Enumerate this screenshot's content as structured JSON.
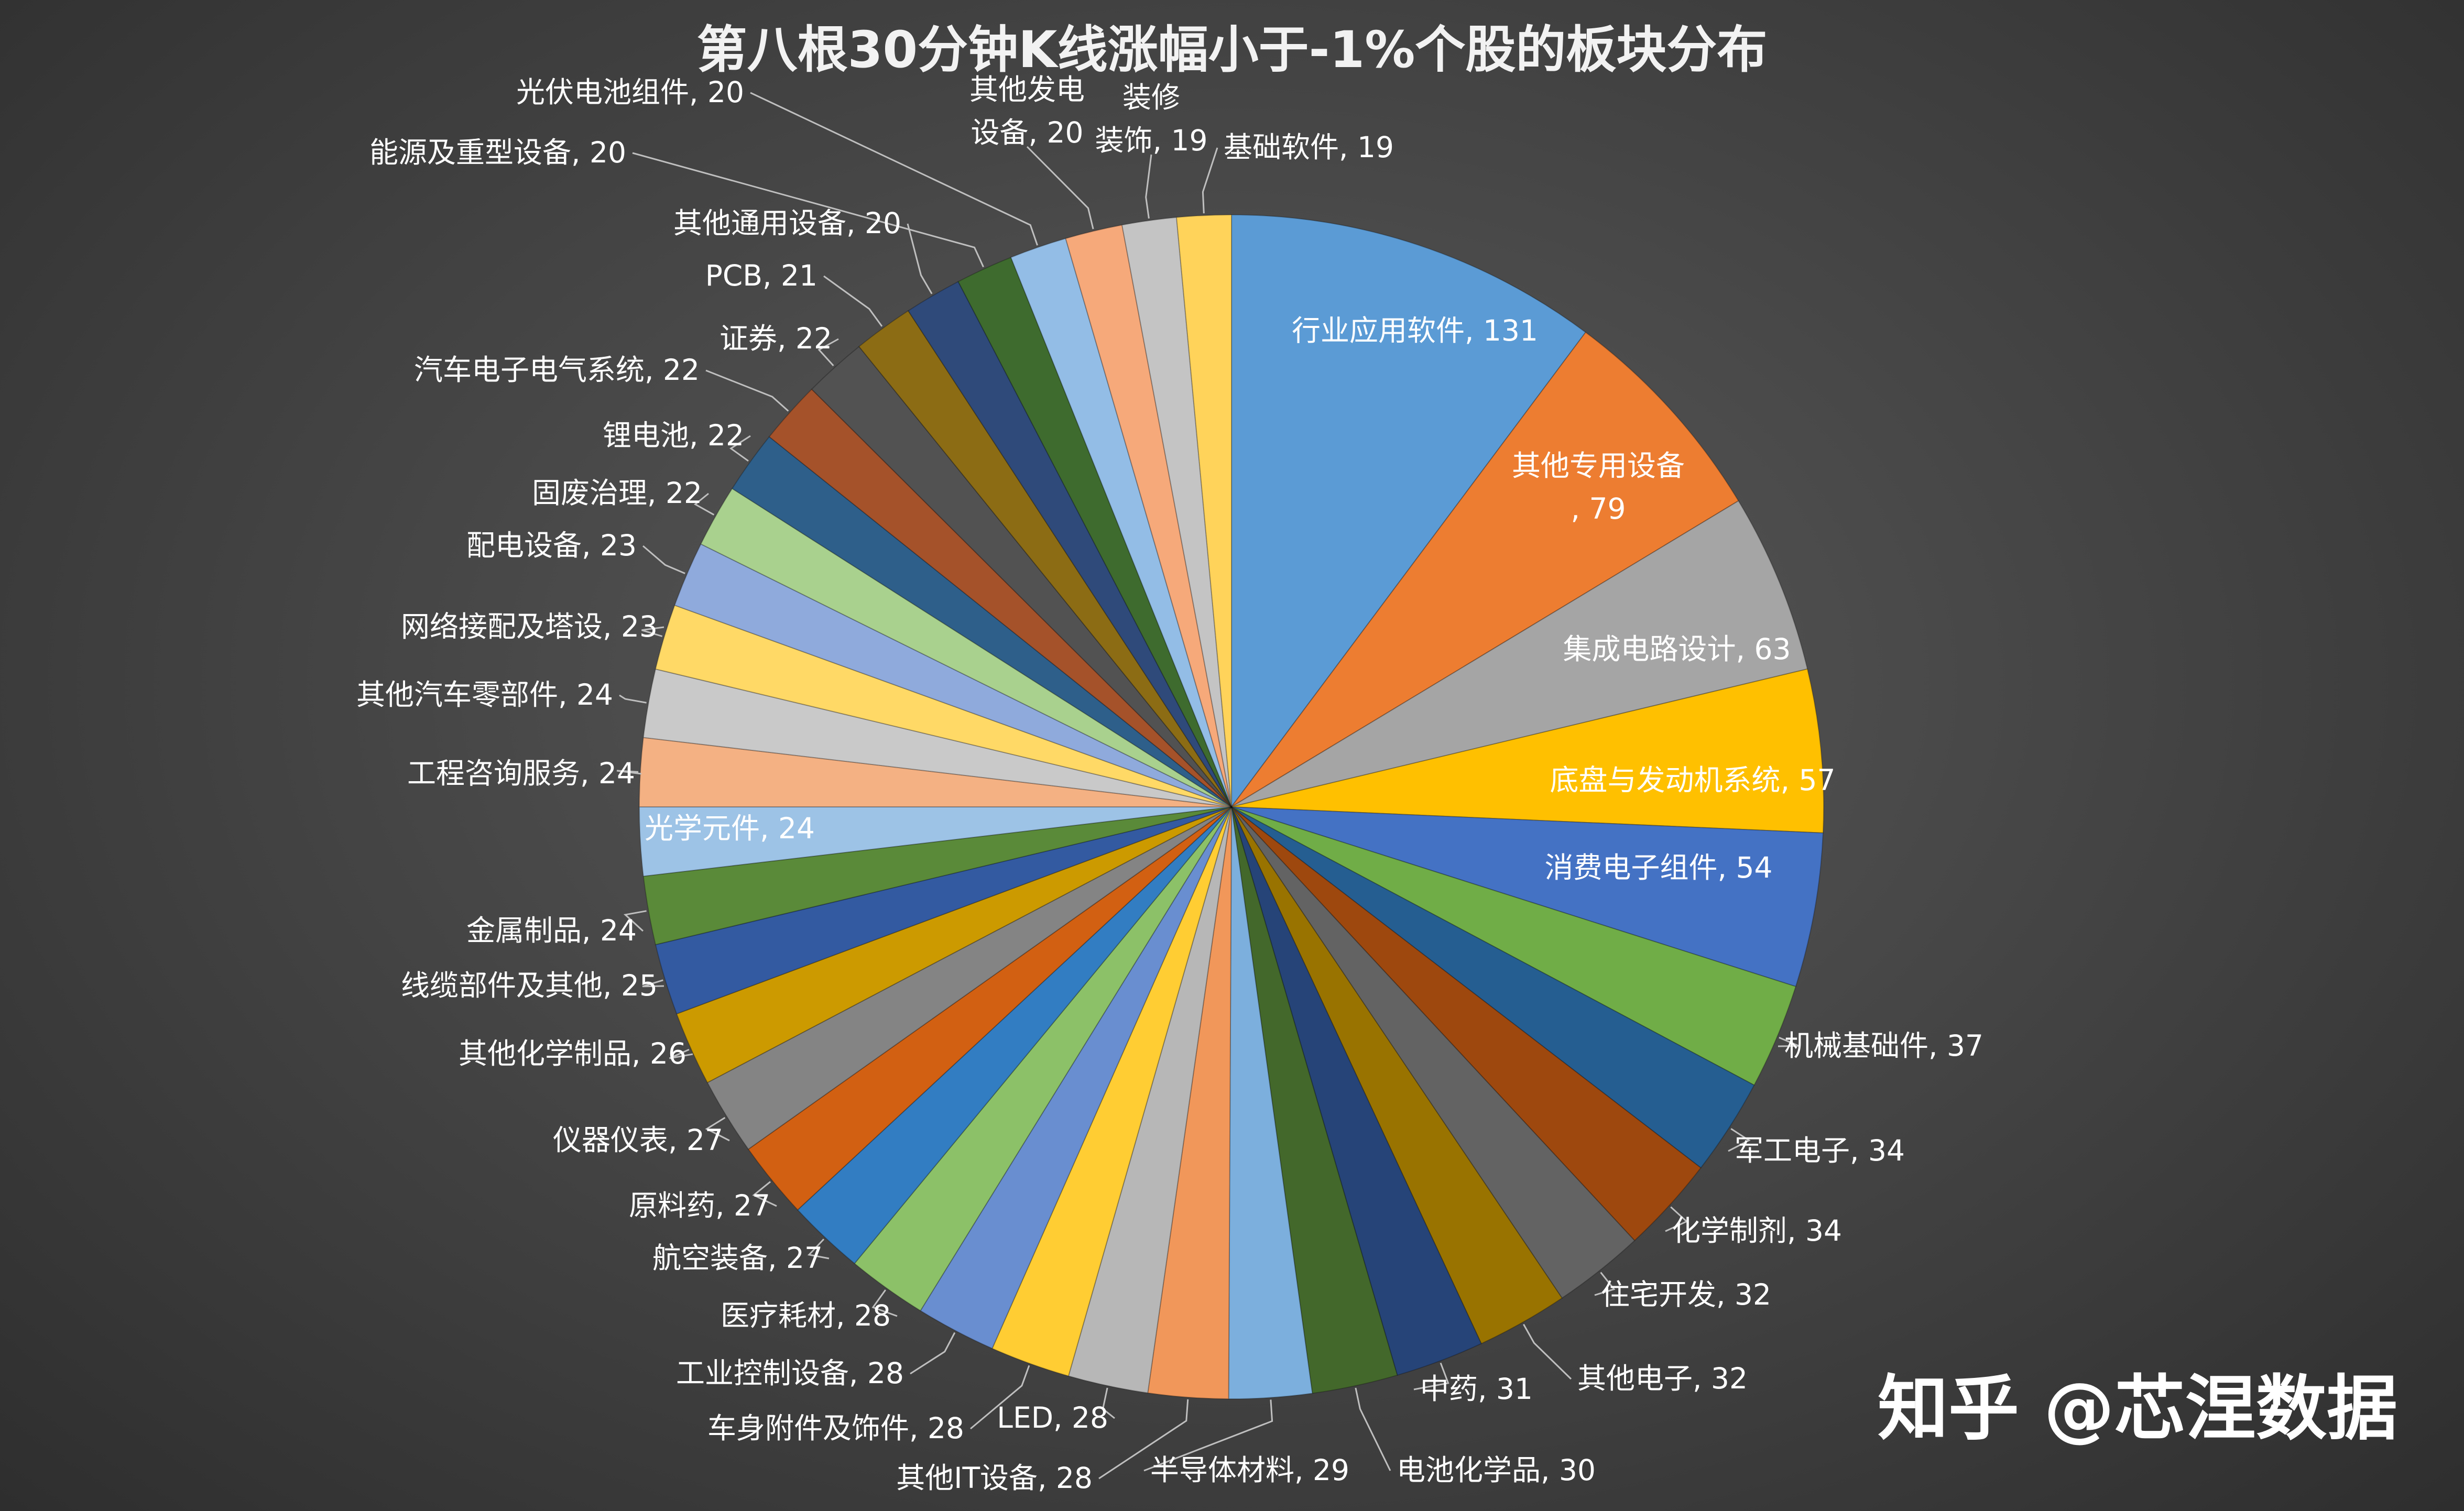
{
  "watermark": "知乎 @芯涅数据",
  "chart_data": {
    "type": "pie",
    "title": "第八根30分钟K线涨幅小于-1%个股的板块分布",
    "label_format": "{name}, {value}",
    "slices": [
      {
        "name": "行业应用软件",
        "value": 131,
        "color": "#5b9bd5"
      },
      {
        "name": "其他专用设备",
        "value": 79,
        "color": "#ed7d31"
      },
      {
        "name": "集成电路设计",
        "value": 63,
        "color": "#a5a5a5"
      },
      {
        "name": "底盘与发动机系统",
        "value": 57,
        "color": "#ffc000"
      },
      {
        "name": "消费电子组件",
        "value": 54,
        "color": "#4472c4"
      },
      {
        "name": "机械基础件",
        "value": 37,
        "color": "#70ad47"
      },
      {
        "name": "军工电子",
        "value": 34,
        "color": "#255e91"
      },
      {
        "name": "化学制剂",
        "value": 34,
        "color": "#9e480e"
      },
      {
        "name": "住宅开发",
        "value": 32,
        "color": "#636363"
      },
      {
        "name": "其他电子",
        "value": 32,
        "color": "#997300"
      },
      {
        "name": "中药",
        "value": 31,
        "color": "#264478"
      },
      {
        "name": "电池化学品",
        "value": 30,
        "color": "#43682b"
      },
      {
        "name": "半导体材料",
        "value": 29,
        "color": "#7cafdd"
      },
      {
        "name": "其他IT设备",
        "value": 28,
        "color": "#f1975a"
      },
      {
        "name": "LED",
        "value": 28,
        "color": "#b7b7b7"
      },
      {
        "name": "车身附件及饰件",
        "value": 28,
        "color": "#ffcd33"
      },
      {
        "name": "工业控制设备",
        "value": 28,
        "color": "#698ed0"
      },
      {
        "name": "医疗耗材",
        "value": 28,
        "color": "#8cc168"
      },
      {
        "name": "航空装备",
        "value": 27,
        "color": "#327dc2"
      },
      {
        "name": "原料药",
        "value": 27,
        "color": "#d26012"
      },
      {
        "name": "仪器仪表",
        "value": 27,
        "color": "#848484"
      },
      {
        "name": "其他化学制品",
        "value": 26,
        "color": "#cc9a00"
      },
      {
        "name": "线缆部件及其他",
        "value": 25,
        "color": "#335aa1"
      },
      {
        "name": "金属制品",
        "value": 24,
        "color": "#5a8a39"
      },
      {
        "name": "光学元件",
        "value": 24,
        "color": "#9dc3e6"
      },
      {
        "name": "工程咨询服务",
        "value": 24,
        "color": "#f4b183"
      },
      {
        "name": "其他汽车零部件",
        "value": 24,
        "color": "#c9c9c9"
      },
      {
        "name": "网络接配及塔设",
        "value": 23,
        "color": "#ffd966"
      },
      {
        "name": "配电设备",
        "value": 23,
        "color": "#8faadc"
      },
      {
        "name": "固废治理",
        "value": 22,
        "color": "#a9d18e"
      },
      {
        "name": "锂电池",
        "value": 22,
        "color": "#2e5f8a"
      },
      {
        "name": "汽车电子电气系统",
        "value": 22,
        "color": "#a5522a"
      },
      {
        "name": "证券",
        "value": 22,
        "color": "#525252"
      },
      {
        "name": "PCB",
        "value": 21,
        "color": "#8c6c14"
      },
      {
        "name": "其他通用设备",
        "value": 20,
        "color": "#2f4a7a"
      },
      {
        "name": "能源及重型设备",
        "value": 20,
        "color": "#3e6b2e"
      },
      {
        "name": "光伏电池组件",
        "value": 20,
        "color": "#93bde6"
      },
      {
        "name": "其他发电设备",
        "value": 20,
        "color": "#f6a97a"
      },
      {
        "name": "装修装饰",
        "value": 19,
        "color": "#c4c4c4"
      },
      {
        "name": "基础软件",
        "value": 19,
        "color": "#ffd35a"
      }
    ]
  }
}
